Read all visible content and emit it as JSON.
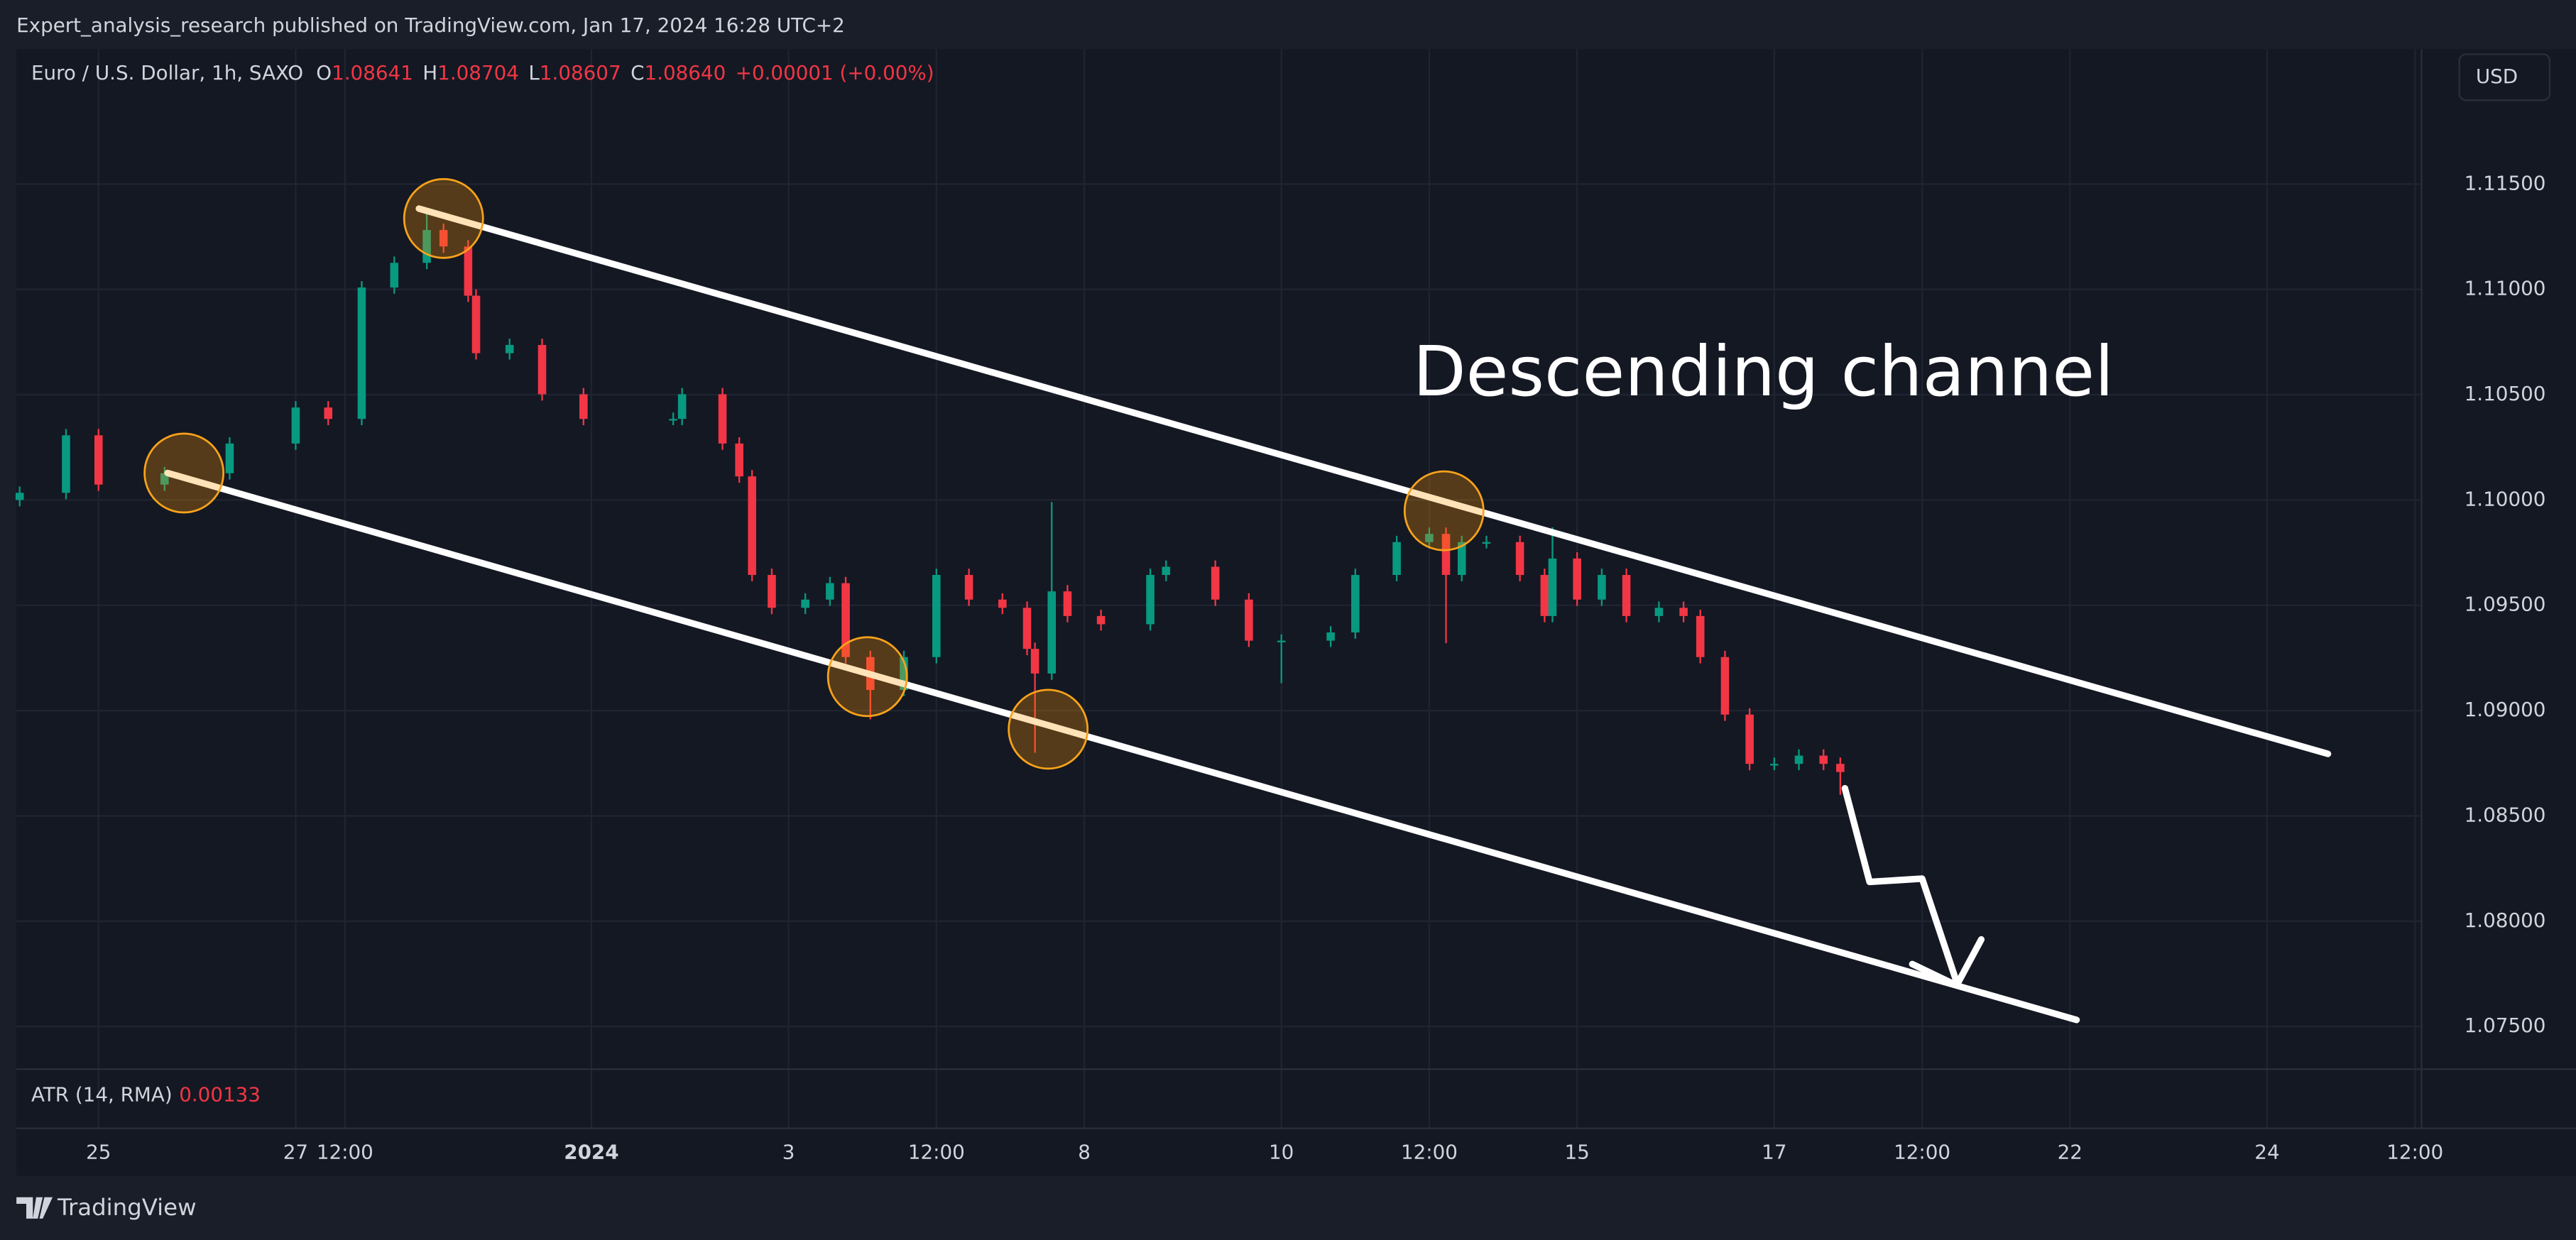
{
  "header": {
    "published": "Expert_analysis_research published on TradingView.com, Jan 17, 2024 16:28 UTC+2"
  },
  "chart_data": {
    "type": "candlestick",
    "title": "Euro / U.S. Dollar, 1h, SAXO",
    "ohlc_legend": [
      {
        "key": "O",
        "value": "1.08641"
      },
      {
        "key": "H",
        "value": "1.08704"
      },
      {
        "key": "L",
        "value": "1.08607"
      },
      {
        "key": "C",
        "value": "1.08640"
      }
    ],
    "change": "+0.00001 (+0.00%)",
    "currency": "USD",
    "x": [
      -0.8,
      -0.33,
      0,
      0.67,
      1.33,
      2,
      2.33,
      2.67,
      3,
      3.33,
      3.5,
      3.75,
      3.83,
      4.17,
      4.5,
      4.92,
      5.83,
      5.92,
      6.33,
      6.5,
      6.63,
      6.83,
      7.17,
      7.42,
      7.58,
      7.83,
      8.17,
      8.5,
      8.83,
      9.17,
      9.42,
      9.5,
      9.67,
      9.83,
      10.17,
      10.67,
      10.83,
      11.33,
      11.67,
      12,
      12.5,
      12.75,
      13.17,
      13.5,
      13.67,
      13.83,
      14.08,
      14.42,
      14.67,
      14.75,
      15,
      15.25,
      15.5,
      15.83,
      16.08,
      16.25,
      16.5,
      16.75,
      17,
      17.25,
      17.5,
      17.67
    ],
    "open": [
      1.1,
      1.10034,
      1.10307,
      1.10073,
      1.10127,
      1.10268,
      1.10439,
      1.10385,
      1.11009,
      1.11126,
      1.11282,
      1.11204,
      1.1097,
      1.10697,
      1.10736,
      1.10502,
      1.10385,
      1.10385,
      1.10502,
      1.10268,
      1.10112,
      1.09644,
      1.09488,
      1.09527,
      1.09605,
      1.09254,
      1.09098,
      1.09254,
      1.09644,
      1.09527,
      1.09488,
      1.09293,
      1.09176,
      1.09566,
      1.09449,
      1.0941,
      1.09644,
      1.09683,
      1.09527,
      1.09332,
      1.09332,
      1.09371,
      1.09644,
      1.098,
      1.09839,
      1.09644,
      1.098,
      1.098,
      1.09644,
      1.09449,
      1.09722,
      1.09527,
      1.09644,
      1.09449,
      1.09488,
      1.09449,
      1.09254,
      1.08981,
      1.08747,
      1.08747,
      1.08786,
      1.08747
    ],
    "high": [
      1.10064,
      1.10337,
      1.10337,
      1.10157,
      1.10298,
      1.10469,
      1.10469,
      1.11039,
      1.11156,
      1.11372,
      1.11312,
      1.11234,
      1.11,
      1.10766,
      1.10766,
      1.10532,
      1.10415,
      1.10532,
      1.10532,
      1.10298,
      1.10142,
      1.09674,
      1.09557,
      1.09635,
      1.09635,
      1.09284,
      1.09284,
      1.09674,
      1.09674,
      1.09557,
      1.09518,
      1.09323,
      1.0999,
      1.09596,
      1.09479,
      1.09674,
      1.09713,
      1.09713,
      1.09557,
      1.09362,
      1.09401,
      1.09674,
      1.0983,
      1.09869,
      1.09869,
      1.0983,
      1.0983,
      1.0983,
      1.09674,
      1.0987,
      1.09752,
      1.09674,
      1.09674,
      1.09518,
      1.09518,
      1.09479,
      1.09284,
      1.09011,
      1.08777,
      1.08816,
      1.08816,
      1.08777
    ],
    "low": [
      1.0997,
      1.10004,
      1.10043,
      1.10043,
      1.10097,
      1.10238,
      1.10355,
      1.10355,
      1.10979,
      1.11096,
      1.11174,
      1.1094,
      1.10667,
      1.10667,
      1.10472,
      1.10355,
      1.10355,
      1.10355,
      1.10238,
      1.10082,
      1.09614,
      1.09458,
      1.09458,
      1.09497,
      1.09224,
      1.08958,
      1.09068,
      1.09224,
      1.09497,
      1.09458,
      1.09263,
      1.088,
      1.09146,
      1.09419,
      1.0938,
      1.0938,
      1.09614,
      1.09497,
      1.09302,
      1.0913,
      1.09302,
      1.09341,
      1.09614,
      1.0977,
      1.0932,
      1.09614,
      1.0977,
      1.09614,
      1.09419,
      1.09419,
      1.09497,
      1.09497,
      1.09419,
      1.09419,
      1.09419,
      1.09224,
      1.08951,
      1.08717,
      1.08717,
      1.08717,
      1.08717,
      1.086
    ],
    "close": [
      1.10034,
      1.10307,
      1.10073,
      1.10127,
      1.10268,
      1.10439,
      1.10385,
      1.11009,
      1.11126,
      1.11282,
      1.11204,
      1.1097,
      1.10697,
      1.10736,
      1.10502,
      1.10385,
      1.10385,
      1.10502,
      1.10268,
      1.10112,
      1.09644,
      1.09488,
      1.09527,
      1.09605,
      1.09254,
      1.09098,
      1.09254,
      1.09644,
      1.09527,
      1.09488,
      1.09293,
      1.09176,
      1.09566,
      1.09449,
      1.0941,
      1.09644,
      1.09683,
      1.09527,
      1.09332,
      1.09332,
      1.09371,
      1.09644,
      1.098,
      1.09839,
      1.09644,
      1.098,
      1.098,
      1.09644,
      1.09449,
      1.09722,
      1.09527,
      1.09644,
      1.09449,
      1.09488,
      1.09449,
      1.09254,
      1.08981,
      1.08747,
      1.08747,
      1.08786,
      1.08747,
      1.08708
    ],
    "up_color": "#089981",
    "down_color": "#f23645",
    "xlim": [
      -0.833,
      23.567
    ],
    "xticks": [
      {
        "value": 0,
        "label": "25"
      },
      {
        "value": 2,
        "label": "27"
      },
      {
        "value": 2.5,
        "label": "12:00"
      },
      {
        "value": 5,
        "label": "2024",
        "bold": true
      },
      {
        "value": 7,
        "label": "3"
      },
      {
        "value": 8.5,
        "label": "12:00"
      },
      {
        "value": 10,
        "label": "8"
      },
      {
        "value": 12,
        "label": "10"
      },
      {
        "value": 13.5,
        "label": "12:00"
      },
      {
        "value": 15,
        "label": "15"
      },
      {
        "value": 17,
        "label": "17"
      },
      {
        "value": 18.5,
        "label": "12:00"
      },
      {
        "value": 20,
        "label": "22"
      },
      {
        "value": 22,
        "label": "24"
      },
      {
        "value": 23.5,
        "label": "12:00"
      }
    ],
    "ylim": [
      1.07305,
      1.1214
    ],
    "yticks": [
      {
        "value": 1.075,
        "label": "1.07500"
      },
      {
        "value": 1.08,
        "label": "1.08000"
      },
      {
        "value": 1.085,
        "label": "1.08500"
      },
      {
        "value": 1.09,
        "label": "1.09000"
      },
      {
        "value": 1.095,
        "label": "1.09500"
      },
      {
        "value": 1.1,
        "label": "1.10000"
      },
      {
        "value": 1.105,
        "label": "1.10500"
      },
      {
        "value": 1.11,
        "label": "1.11000"
      },
      {
        "value": 1.115,
        "label": "1.11500"
      }
    ],
    "grid": true,
    "annotations": [
      "Descending channel"
    ],
    "indicator": {
      "name": "ATR (14, RMA)",
      "value": "0.00133"
    }
  },
  "footer": {
    "brand": "TradingView"
  }
}
